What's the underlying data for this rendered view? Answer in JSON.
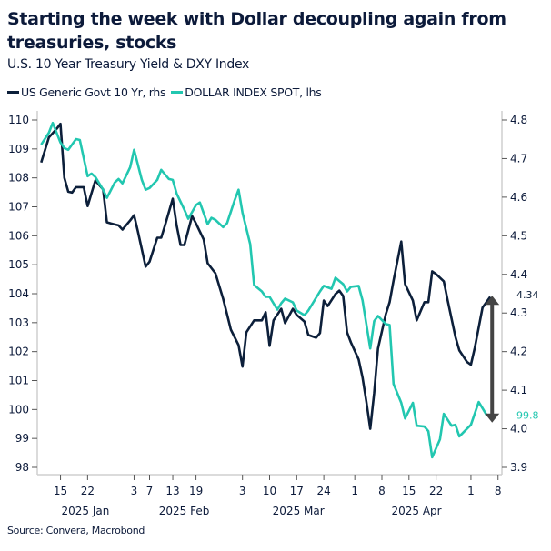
{
  "header": {
    "title": "Starting the week with Dollar decoupling again from treasuries, stocks",
    "subtitle": "U.S. 10 Year Treasury Yield & DXY Index"
  },
  "legend": [
    {
      "label": "US Generic Govt 10 Yr, rhs",
      "color": "#0c1f3a"
    },
    {
      "label": "DOLLAR INDEX SPOT, lhs",
      "color": "#22c7b0"
    }
  ],
  "source": "Source: Convera, Macrobond",
  "chart_data": {
    "type": "line",
    "title": "Starting the week with Dollar decoupling again from treasuries, stocks",
    "subtitle": "U.S. 10 Year Treasury Yield & DXY Index",
    "xlim": [
      "2025-01-09",
      "2025-05-09"
    ],
    "y_left": {
      "ylim": [
        97.7,
        110.3
      ],
      "ticks": [
        98,
        99,
        100,
        101,
        102,
        103,
        104,
        105,
        106,
        107,
        108,
        109,
        110
      ]
    },
    "y_right": {
      "ylim": [
        3.87,
        4.83
      ],
      "ticks": [
        "3.9",
        "4.0",
        "4.1",
        "4.2",
        "4.3",
        "4.4",
        "4.5",
        "4.6",
        "4.7",
        "4.8"
      ]
    },
    "x_ticks": [
      {
        "date": "2025-01-15",
        "label": "15"
      },
      {
        "date": "2025-01-22",
        "label": "22"
      },
      {
        "date": "2025-02-03",
        "label": "3"
      },
      {
        "date": "2025-02-07",
        "label": "7"
      },
      {
        "date": "2025-02-13",
        "label": "13"
      },
      {
        "date": "2025-02-19",
        "label": "19"
      },
      {
        "date": "2025-03-03",
        "label": "3"
      },
      {
        "date": "2025-03-10",
        "label": "10"
      },
      {
        "date": "2025-03-17",
        "label": "17"
      },
      {
        "date": "2025-03-24",
        "label": "24"
      },
      {
        "date": "2025-04-01",
        "label": "1"
      },
      {
        "date": "2025-04-08",
        "label": "8"
      },
      {
        "date": "2025-04-15",
        "label": "15"
      },
      {
        "date": "2025-04-22",
        "label": "22"
      },
      {
        "date": "2025-05-01",
        "label": "1"
      },
      {
        "date": "2025-05-08",
        "label": "8"
      }
    ],
    "month_labels": [
      {
        "label": "2025 Jan",
        "from": "2025-01-09",
        "to": "2025-02-01"
      },
      {
        "label": "2025 Feb",
        "from": "2025-02-01",
        "to": "2025-03-01"
      },
      {
        "label": "2025 Mar",
        "from": "2025-03-01",
        "to": "2025-04-01"
      },
      {
        "label": "2025 Apr",
        "from": "2025-04-01",
        "to": "2025-05-01"
      }
    ],
    "grid": false,
    "legend_position": "top-left",
    "series": [
      {
        "name": "US Generic Govt 10 Yr, rhs",
        "axis": "right",
        "color": "#0c1f3a",
        "points": [
          [
            "2025-01-10",
            4.69
          ],
          [
            "2025-01-12",
            4.755
          ],
          [
            "2025-01-14",
            4.777
          ],
          [
            "2025-01-15",
            4.79
          ],
          [
            "2025-01-16",
            4.65
          ],
          [
            "2025-01-17",
            4.614
          ],
          [
            "2025-01-18",
            4.612
          ],
          [
            "2025-01-19",
            4.626
          ],
          [
            "2025-01-21",
            4.626
          ],
          [
            "2025-01-22",
            4.577
          ],
          [
            "2025-01-23",
            4.61
          ],
          [
            "2025-01-24",
            4.643
          ],
          [
            "2025-01-26",
            4.62
          ],
          [
            "2025-01-27",
            4.535
          ],
          [
            "2025-01-28",
            4.532
          ],
          [
            "2025-01-30",
            4.527
          ],
          [
            "2025-01-31",
            4.516
          ],
          [
            "2025-02-02",
            4.54
          ],
          [
            "2025-02-03",
            4.553
          ],
          [
            "2025-02-04",
            4.511
          ],
          [
            "2025-02-06",
            4.42
          ],
          [
            "2025-02-07",
            4.433
          ],
          [
            "2025-02-09",
            4.495
          ],
          [
            "2025-02-10",
            4.495
          ],
          [
            "2025-02-11",
            4.527
          ],
          [
            "2025-02-13",
            4.596
          ],
          [
            "2025-02-14",
            4.527
          ],
          [
            "2025-02-15",
            4.476
          ],
          [
            "2025-02-16",
            4.476
          ],
          [
            "2025-02-18",
            4.551
          ],
          [
            "2025-02-19",
            4.532
          ],
          [
            "2025-02-21",
            4.49
          ],
          [
            "2025-02-22",
            4.429
          ],
          [
            "2025-02-24",
            4.403
          ],
          [
            "2025-02-26",
            4.337
          ],
          [
            "2025-02-27",
            4.297
          ],
          [
            "2025-02-28",
            4.257
          ],
          [
            "2025-03-02",
            4.217
          ],
          [
            "2025-03-03",
            4.161
          ],
          [
            "2025-03-04",
            4.25
          ],
          [
            "2025-03-06",
            4.281
          ],
          [
            "2025-03-08",
            4.281
          ],
          [
            "2025-03-09",
            4.302
          ],
          [
            "2025-03-10",
            4.215
          ],
          [
            "2025-03-11",
            4.281
          ],
          [
            "2025-03-13",
            4.311
          ],
          [
            "2025-03-14",
            4.274
          ],
          [
            "2025-03-16",
            4.311
          ],
          [
            "2025-03-17",
            4.295
          ],
          [
            "2025-03-19",
            4.278
          ],
          [
            "2025-03-20",
            4.243
          ],
          [
            "2025-03-22",
            4.236
          ],
          [
            "2025-03-23",
            4.248
          ],
          [
            "2025-03-24",
            4.332
          ],
          [
            "2025-03-25",
            4.318
          ],
          [
            "2025-03-27",
            4.349
          ],
          [
            "2025-03-28",
            4.358
          ],
          [
            "2025-03-29",
            4.344
          ],
          [
            "2025-03-30",
            4.25
          ],
          [
            "2025-03-31",
            4.224
          ],
          [
            "2025-04-02",
            4.18
          ],
          [
            "2025-04-03",
            4.133
          ],
          [
            "2025-04-04",
            4.069
          ],
          [
            "2025-04-05",
            4.0
          ],
          [
            "2025-04-06",
            4.093
          ],
          [
            "2025-04-07",
            4.208
          ],
          [
            "2025-04-09",
            4.297
          ],
          [
            "2025-04-10",
            4.328
          ],
          [
            "2025-04-11",
            4.384
          ],
          [
            "2025-04-13",
            4.485
          ],
          [
            "2025-04-14",
            4.375
          ],
          [
            "2025-04-16",
            4.332
          ],
          [
            "2025-04-17",
            4.281
          ],
          [
            "2025-04-19",
            4.328
          ],
          [
            "2025-04-20",
            4.328
          ],
          [
            "2025-04-21",
            4.408
          ],
          [
            "2025-04-22",
            4.401
          ],
          [
            "2025-04-24",
            4.382
          ],
          [
            "2025-04-25",
            4.332
          ],
          [
            "2025-04-27",
            4.238
          ],
          [
            "2025-04-28",
            4.203
          ],
          [
            "2025-04-30",
            4.173
          ],
          [
            "2025-05-01",
            4.166
          ],
          [
            "2025-05-02",
            4.21
          ],
          [
            "2025-05-04",
            4.314
          ],
          [
            "2025-05-06",
            4.342
          ]
        ]
      },
      {
        "name": "DOLLAR INDEX SPOT, lhs",
        "axis": "left",
        "color": "#22c7b0",
        "points": [
          [
            "2025-01-10",
            109.15
          ],
          [
            "2025-01-12",
            109.56
          ],
          [
            "2025-01-13",
            109.9
          ],
          [
            "2025-01-15",
            109.22
          ],
          [
            "2025-01-16",
            109.03
          ],
          [
            "2025-01-17",
            108.97
          ],
          [
            "2025-01-19",
            109.34
          ],
          [
            "2025-01-20",
            109.31
          ],
          [
            "2025-01-22",
            108.06
          ],
          [
            "2025-01-23",
            108.15
          ],
          [
            "2025-01-24",
            108.03
          ],
          [
            "2025-01-26",
            107.59
          ],
          [
            "2025-01-27",
            107.31
          ],
          [
            "2025-01-29",
            107.84
          ],
          [
            "2025-01-30",
            107.96
          ],
          [
            "2025-01-31",
            107.81
          ],
          [
            "2025-02-02",
            108.37
          ],
          [
            "2025-02-03",
            108.97
          ],
          [
            "2025-02-05",
            107.93
          ],
          [
            "2025-02-06",
            107.59
          ],
          [
            "2025-02-07",
            107.65
          ],
          [
            "2025-02-09",
            107.93
          ],
          [
            "2025-02-10",
            108.28
          ],
          [
            "2025-02-12",
            107.96
          ],
          [
            "2025-02-13",
            107.93
          ],
          [
            "2025-02-14",
            107.46
          ],
          [
            "2025-02-16",
            106.9
          ],
          [
            "2025-02-17",
            106.59
          ],
          [
            "2025-02-19",
            107.06
          ],
          [
            "2025-02-20",
            107.15
          ],
          [
            "2025-02-22",
            106.4
          ],
          [
            "2025-02-23",
            106.62
          ],
          [
            "2025-02-24",
            106.55
          ],
          [
            "2025-02-26",
            106.3
          ],
          [
            "2025-02-27",
            106.43
          ],
          [
            "2025-03-01",
            107.24
          ],
          [
            "2025-03-02",
            107.59
          ],
          [
            "2025-03-03",
            106.8
          ],
          [
            "2025-03-05",
            105.71
          ],
          [
            "2025-03-06",
            104.3
          ],
          [
            "2025-03-08",
            104.08
          ],
          [
            "2025-03-09",
            103.89
          ],
          [
            "2025-03-10",
            103.89
          ],
          [
            "2025-03-12",
            103.45
          ],
          [
            "2025-03-13",
            103.67
          ],
          [
            "2025-03-14",
            103.83
          ],
          [
            "2025-03-16",
            103.7
          ],
          [
            "2025-03-17",
            103.42
          ],
          [
            "2025-03-19",
            103.26
          ],
          [
            "2025-03-20",
            103.42
          ],
          [
            "2025-03-22",
            103.86
          ],
          [
            "2025-03-23",
            104.08
          ],
          [
            "2025-03-24",
            104.27
          ],
          [
            "2025-03-26",
            104.17
          ],
          [
            "2025-03-27",
            104.55
          ],
          [
            "2025-03-29",
            104.33
          ],
          [
            "2025-03-30",
            104.08
          ],
          [
            "2025-03-31",
            104.24
          ],
          [
            "2025-04-02",
            104.27
          ],
          [
            "2025-04-03",
            103.77
          ],
          [
            "2025-04-05",
            102.11
          ],
          [
            "2025-04-06",
            103.05
          ],
          [
            "2025-04-07",
            103.23
          ],
          [
            "2025-04-09",
            102.95
          ],
          [
            "2025-04-10",
            102.92
          ],
          [
            "2025-04-11",
            100.88
          ],
          [
            "2025-04-13",
            100.23
          ],
          [
            "2025-04-14",
            99.69
          ],
          [
            "2025-04-16",
            100.23
          ],
          [
            "2025-04-17",
            99.44
          ],
          [
            "2025-04-19",
            99.41
          ],
          [
            "2025-04-20",
            99.25
          ],
          [
            "2025-04-21",
            98.35
          ],
          [
            "2025-04-23",
            98.97
          ],
          [
            "2025-04-24",
            99.85
          ],
          [
            "2025-04-26",
            99.44
          ],
          [
            "2025-04-27",
            99.47
          ],
          [
            "2025-04-28",
            99.07
          ],
          [
            "2025-05-01",
            99.47
          ],
          [
            "2025-05-03",
            100.26
          ],
          [
            "2025-05-05",
            99.82
          ]
        ]
      }
    ],
    "annotations": [
      {
        "type": "double-arrow",
        "from_date": "2025-05-06",
        "color": "#444444",
        "description_values": [
          "4.34",
          "99.8"
        ]
      },
      {
        "label": "4.34",
        "color": "#0c1f3a",
        "axis": "right",
        "value": 4.34
      },
      {
        "label": "99.8",
        "color": "#22c7b0",
        "axis": "left",
        "value": 99.8
      }
    ]
  }
}
